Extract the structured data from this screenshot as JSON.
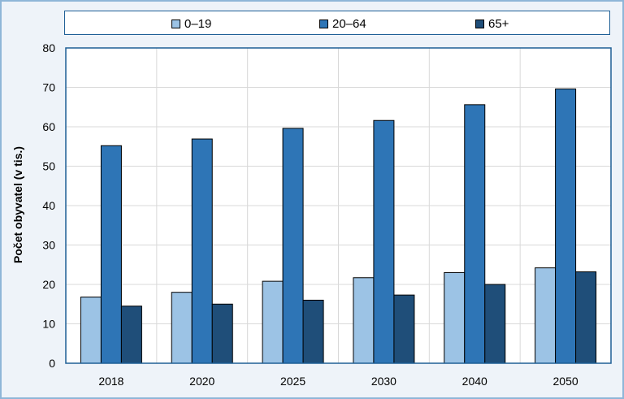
{
  "chart_data": {
    "type": "bar",
    "categories": [
      "2018",
      "2020",
      "2025",
      "2030",
      "2040",
      "2050"
    ],
    "series": [
      {
        "name": "0–19",
        "values": [
          16.8,
          18.0,
          20.8,
          21.7,
          23.0,
          24.2
        ],
        "color": "#9cc3e5"
      },
      {
        "name": "20–64",
        "values": [
          55.2,
          56.9,
          59.6,
          61.6,
          65.6,
          69.6
        ],
        "color": "#2e75b6"
      },
      {
        "name": "65+",
        "values": [
          14.5,
          15.0,
          16.0,
          17.3,
          20.0,
          23.2
        ],
        "color": "#1f4e79"
      }
    ],
    "title": "",
    "xlabel": "",
    "ylabel": "Počet obyvatel (v tis.)",
    "ylim": [
      0,
      80
    ],
    "yticks": [
      0,
      10,
      20,
      30,
      40,
      50,
      60,
      70,
      80
    ],
    "grid": true,
    "legend_position": "top"
  }
}
